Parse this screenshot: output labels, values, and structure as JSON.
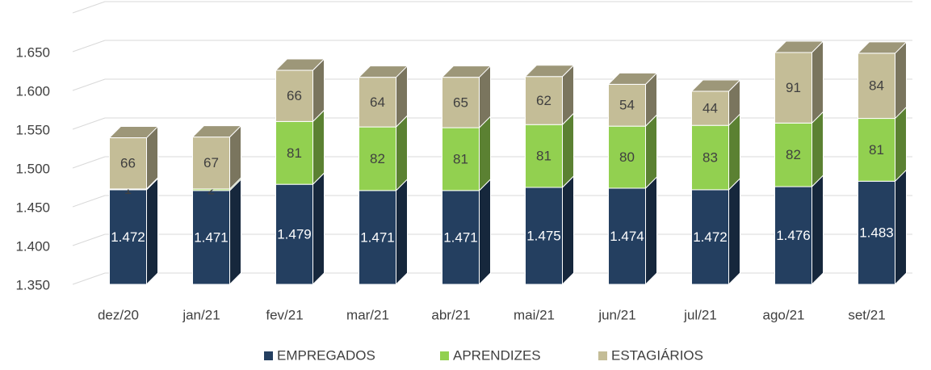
{
  "chart_data": {
    "type": "bar3d_stacked",
    "categories": [
      "dez/20",
      "jan/21",
      "fev/21",
      "mar/21",
      "abr/21",
      "mai/21",
      "jun/21",
      "jul/21",
      "ago/21",
      "set/21"
    ],
    "series": [
      {
        "name": "EMPREGADOS",
        "color": "#243f60",
        "values": [
          1472,
          1471,
          1479,
          1471,
          1471,
          1475,
          1474,
          1472,
          1476,
          1483
        ],
        "value_labels": [
          "1.472",
          "1.471",
          "1.479",
          "1.471",
          "1.471",
          "1.475",
          "1.474",
          "1.472",
          "1.476",
          "1.483"
        ]
      },
      {
        "name": "APRENDIZES",
        "color": "#92d050",
        "values": [
          1,
          2,
          81,
          82,
          81,
          81,
          80,
          83,
          82,
          81
        ]
      },
      {
        "name": "ESTAGIÁRIOS",
        "color": "#c4bd97",
        "values": [
          66,
          67,
          66,
          64,
          65,
          62,
          54,
          44,
          91,
          84
        ]
      }
    ],
    "ylim": [
      1350,
      1700
    ],
    "yticks": [
      {
        "value": 1350,
        "label": "1.350"
      },
      {
        "value": 1400,
        "label": "1.400"
      },
      {
        "value": 1450,
        "label": "1.450"
      },
      {
        "value": 1500,
        "label": "1.500"
      },
      {
        "value": 1550,
        "label": "1.550"
      },
      {
        "value": 1600,
        "label": "1.600"
      },
      {
        "value": 1650,
        "label": "1.650"
      }
    ],
    "grid": true,
    "legend": "bottom"
  }
}
